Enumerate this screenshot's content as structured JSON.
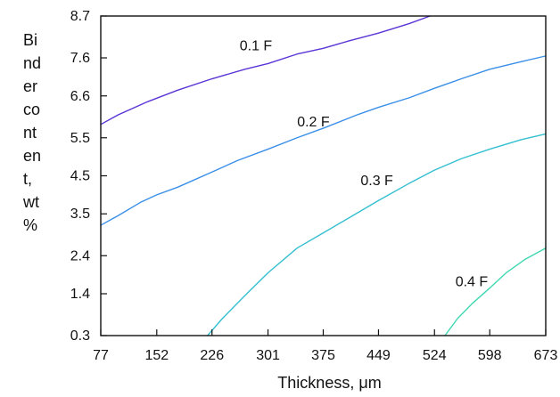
{
  "chart_data": {
    "type": "line",
    "title": "",
    "xlabel": "Thickness, μm",
    "ylabel": "Binder content, wt %",
    "ylabel_lines": [
      "Bi",
      "nd",
      "er",
      "co",
      "nt",
      "en",
      "t,",
      "wt",
      "%"
    ],
    "xlim": [
      77,
      673
    ],
    "ylim": [
      0.3,
      8.7
    ],
    "x_ticks": [
      "77",
      "152",
      "226",
      "301",
      "375",
      "449",
      "524",
      "598",
      "673"
    ],
    "y_ticks": [
      "8.7",
      "7.6",
      "6.6",
      "5.5",
      "4.5",
      "3.5",
      "2.4",
      "1.4",
      "0.3"
    ],
    "grid": false,
    "series": [
      {
        "name": "0.1 F",
        "color": "#5a35d6",
        "label_text": "0.1   F",
        "label_pos": [
          263,
          7.8
        ],
        "x": [
          77,
          100,
          140,
          180,
          226,
          270,
          301,
          340,
          375,
          410,
          449,
          490,
          518
        ],
        "y": [
          5.85,
          6.1,
          6.45,
          6.75,
          7.05,
          7.3,
          7.45,
          7.7,
          7.85,
          8.05,
          8.25,
          8.5,
          8.7
        ]
      },
      {
        "name": "0.2 F",
        "color": "#3a8fe8",
        "label_text": "0.2 F",
        "label_pos": [
          340,
          5.8
        ],
        "x": [
          77,
          100,
          130,
          152,
          180,
          226,
          260,
          301,
          340,
          375,
          420,
          449,
          490,
          524,
          560,
          598,
          640,
          673
        ],
        "y": [
          3.2,
          3.45,
          3.8,
          4.0,
          4.2,
          4.6,
          4.9,
          5.2,
          5.5,
          5.75,
          6.1,
          6.3,
          6.55,
          6.8,
          7.05,
          7.3,
          7.5,
          7.65
        ]
      },
      {
        "name": "0.3 F",
        "color": "#35bfd0",
        "label_text": "0.3 F",
        "label_pos": [
          425,
          4.25
        ],
        "x": [
          220,
          240,
          270,
          301,
          340,
          375,
          410,
          449,
          490,
          524,
          560,
          598,
          640,
          673
        ],
        "y": [
          0.3,
          0.75,
          1.35,
          1.95,
          2.6,
          3.0,
          3.4,
          3.85,
          4.3,
          4.65,
          4.95,
          5.2,
          5.45,
          5.6
        ]
      },
      {
        "name": "0.4 F",
        "color": "#40d7b2",
        "label_text": "0.4 F",
        "label_pos": [
          552,
          1.6
        ],
        "x": [
          538,
          555,
          575,
          598,
          620,
          645,
          673
        ],
        "y": [
          0.3,
          0.75,
          1.15,
          1.55,
          1.95,
          2.3,
          2.6
        ]
      }
    ]
  }
}
